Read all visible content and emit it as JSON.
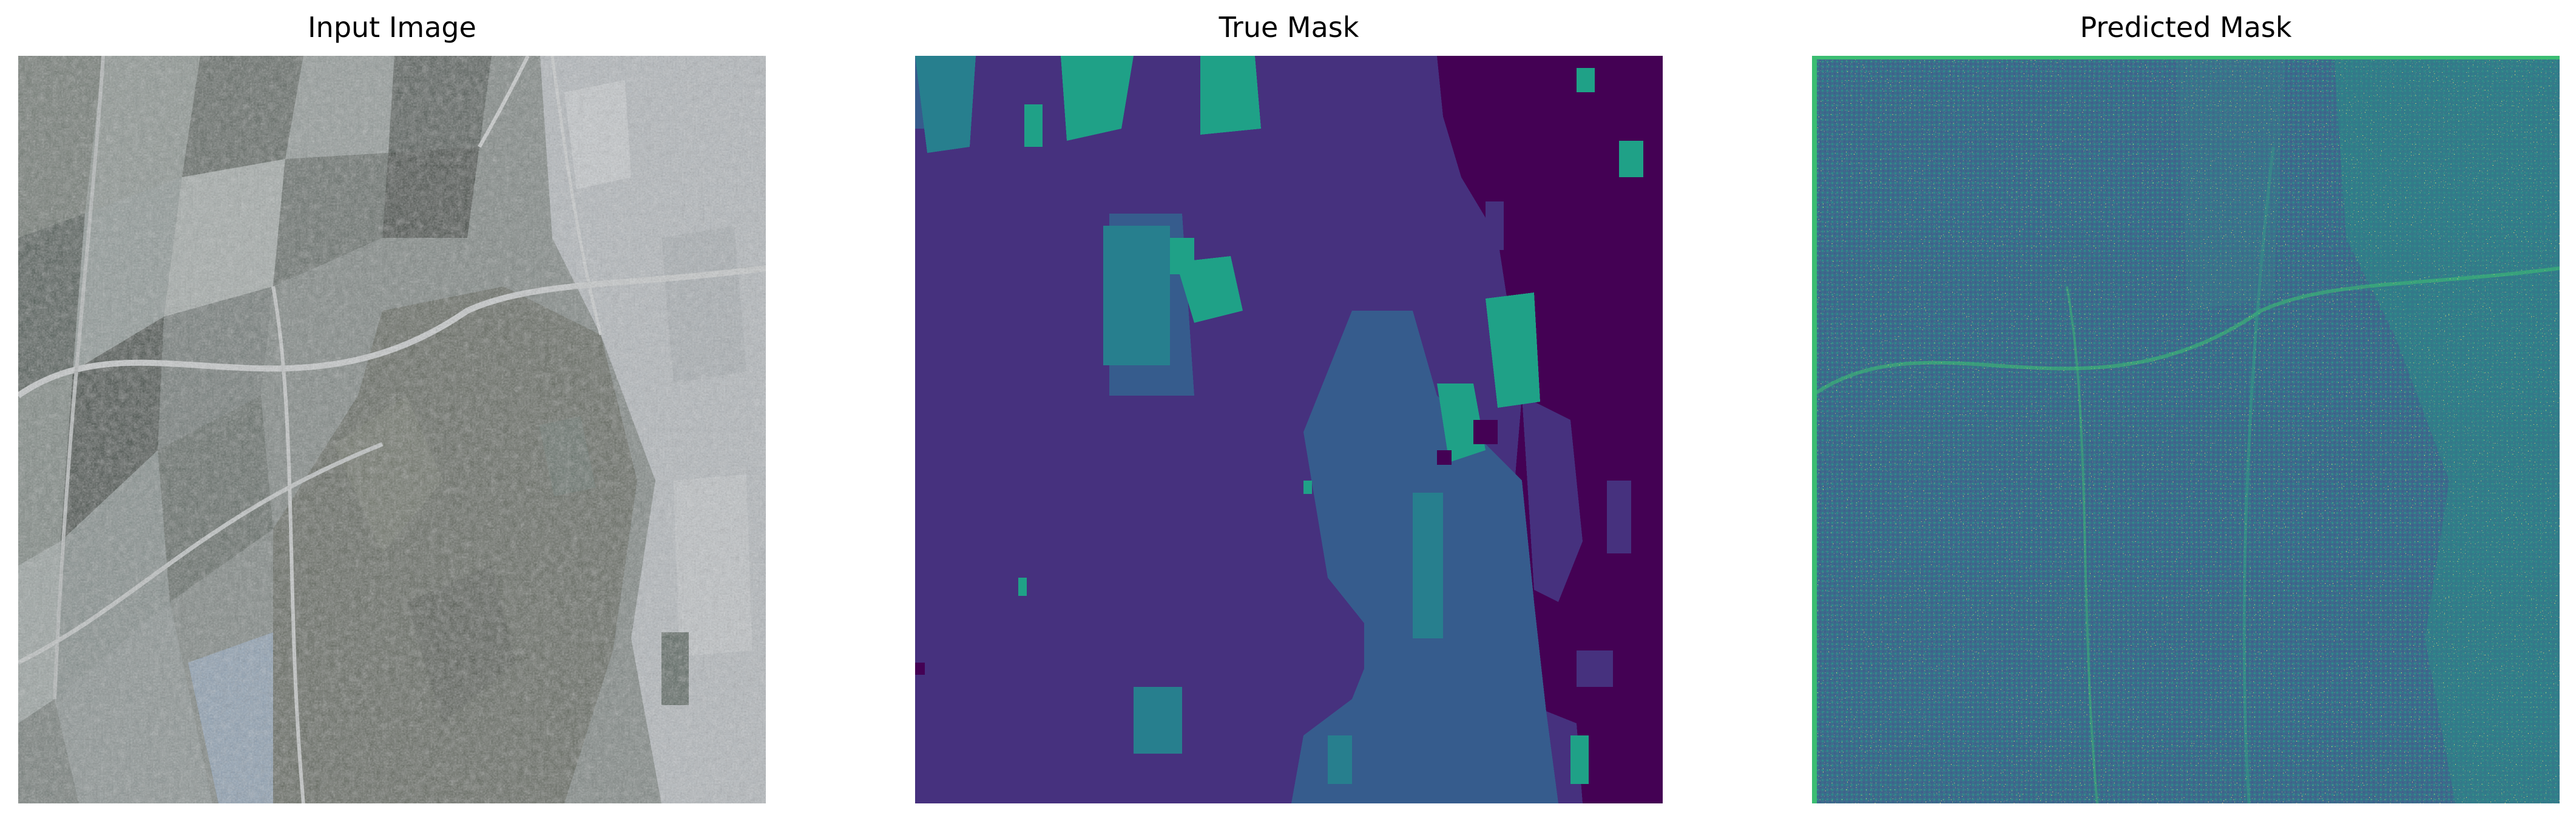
{
  "figure": {
    "panels": [
      {
        "title": "Input Image",
        "content": "satellite-rgb-image",
        "colors": {
          "field_dark": "#434b45",
          "field_mid": "#6f7873",
          "field_light": "#9aa2a2",
          "forest": "#5d6359",
          "urban": "#b8bcc0",
          "road": "#c4c7c8"
        }
      },
      {
        "title": "True Mask",
        "content": "segmentation-mask-viridis",
        "colors": {
          "class_0": "#440154",
          "class_1": "#46317e",
          "class_2": "#365c8d",
          "class_3": "#277f8e",
          "class_4": "#1fa187"
        }
      },
      {
        "title": "Predicted Mask",
        "content": "segmentation-mask-viridis",
        "colors": {
          "base": "#3a6c8b",
          "teal": "#2c8e8a",
          "green": "#3bbd72",
          "yellow": "#fde725",
          "dark": "#440154"
        }
      }
    ]
  }
}
